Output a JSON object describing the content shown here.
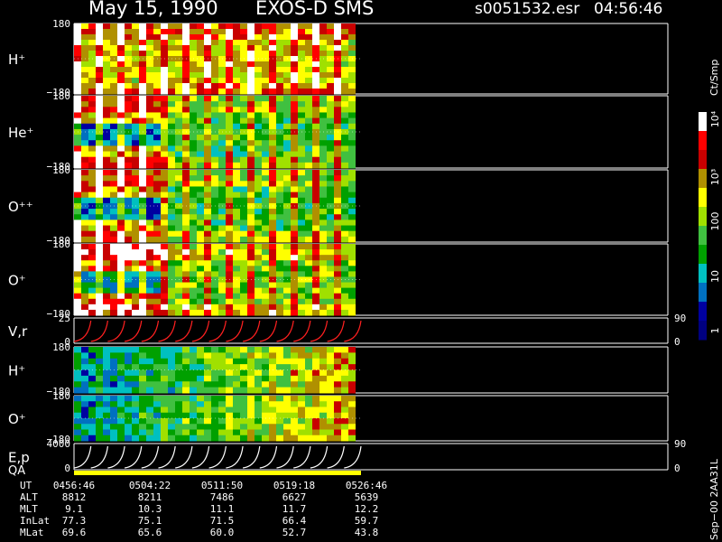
{
  "header": {
    "date": "May 15, 1990",
    "instrument": "EXOS-D SMS",
    "file": "s0051532.esr",
    "time": "04:56:46"
  },
  "colors": {
    "background": "#000000",
    "foreground": "#ffffff",
    "trace_red": "#ff2020",
    "qa_yellow": "#ffff00"
  },
  "colorbar": {
    "unit": "Ct/Smp",
    "tick_labels": [
      "10⁴",
      "10³",
      "100",
      "10",
      "1"
    ],
    "scale": "log",
    "range": [
      1,
      10000
    ],
    "colors": [
      "#ffffff",
      "#ff0000",
      "#c80000",
      "#b09000",
      "#ffff00",
      "#a0e000",
      "#40c040",
      "#00a000",
      "#00c0c0",
      "#0070c0",
      "#0000a0",
      "#000080"
    ]
  },
  "chart_data": {
    "type": "heatmap",
    "title": "May 15, 1990   EXOS-D SMS",
    "time_axis": {
      "start": "04:56:46",
      "end": "05:26:46",
      "data_end": "05:26:46",
      "ticks": [
        "0456:46",
        "0504:22",
        "0511:50",
        "0519:18",
        "0526:46"
      ]
    },
    "panels": [
      {
        "key": "h_plus_angle",
        "label": "H⁺",
        "kind": "spectrogram",
        "y_top": "180",
        "y_bottom": "−180",
        "intensity": "high",
        "pattern": "periodic"
      },
      {
        "key": "he_plus_angle",
        "label": "He⁺",
        "kind": "spectrogram",
        "y_top": "180",
        "y_bottom": "−180",
        "intensity": "medium",
        "pattern": "periodic"
      },
      {
        "key": "o_pp_angle",
        "label": "O⁺⁺",
        "kind": "spectrogram",
        "y_top": "180",
        "y_bottom": "−180",
        "intensity": "medium",
        "pattern": "periodic"
      },
      {
        "key": "o_plus_angle",
        "label": "O⁺",
        "kind": "spectrogram",
        "y_top": "180",
        "y_bottom": "−180",
        "intensity": "medium-high",
        "pattern": "periodic"
      },
      {
        "key": "vr",
        "label": "V,r",
        "kind": "line",
        "y_top": "25",
        "y_bottom": "0",
        "right_top": "90",
        "right_bottom": "0",
        "sweeps": 17
      },
      {
        "key": "h_plus_2",
        "label": "H⁺",
        "kind": "spectrogram",
        "y_top": "180",
        "y_bottom": "−180",
        "intensity": "low",
        "pattern": "banded"
      },
      {
        "key": "o_plus_2",
        "label": "O⁺",
        "kind": "spectrogram",
        "y_top": "180",
        "y_bottom": "−180",
        "intensity": "low",
        "pattern": "banded"
      },
      {
        "key": "ep",
        "label": "E,p",
        "kind": "line",
        "y_top": "4000",
        "y_bottom": "0",
        "right_top": "90",
        "right_bottom": "0",
        "sweeps": 17
      },
      {
        "key": "qa",
        "label": "QA",
        "kind": "bar"
      }
    ]
  },
  "ephemeris": {
    "labels": [
      "UT",
      "ALT",
      "MLT",
      "InLat",
      "MLat"
    ],
    "rows": [
      [
        "0456:46",
        "0504:22",
        "0511:50",
        "0519:18",
        "0526:46"
      ],
      [
        "8812",
        "8211",
        "7486",
        "6627",
        "5639"
      ],
      [
        "9.1",
        "10.3",
        "11.1",
        "11.7",
        "12.2"
      ],
      [
        "77.3",
        "75.1",
        "71.5",
        "66.4",
        "59.7"
      ],
      [
        "69.6",
        "65.6",
        "60.0",
        "52.7",
        "43.8"
      ]
    ]
  },
  "footer": {
    "code": "Sep−00  2AA31L"
  }
}
